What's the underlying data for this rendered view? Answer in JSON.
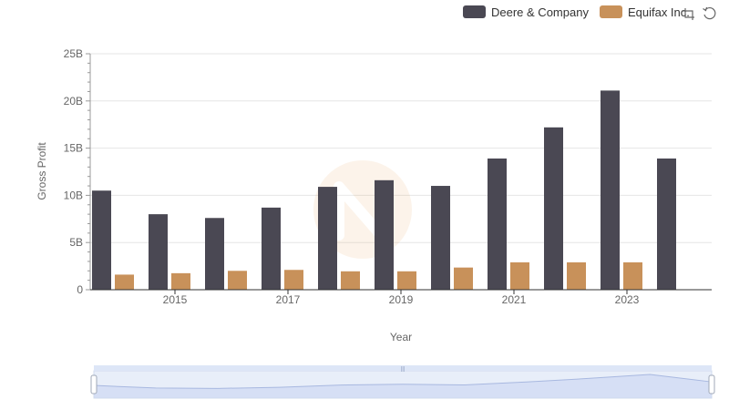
{
  "chart_data": {
    "type": "bar",
    "title": "",
    "xlabel": "Year",
    "ylabel": "Gross Profit",
    "categories": [
      "2014",
      "2015",
      "2016",
      "2017",
      "2018",
      "2019",
      "2020",
      "2021",
      "2022",
      "2023",
      "2024"
    ],
    "x_tick_labels": [
      "2015",
      "2017",
      "2019",
      "2021",
      "2023"
    ],
    "y_tick_labels": [
      "0",
      "5B",
      "10B",
      "15B",
      "20B",
      "25B"
    ],
    "ylim": [
      0,
      25000000000
    ],
    "grid": true,
    "legend_position": "top-right",
    "series": [
      {
        "name": "Deere & Company",
        "color": "#4a4853",
        "values": [
          10500000000,
          8000000000,
          7600000000,
          8700000000,
          10900000000,
          11600000000,
          11000000000,
          13900000000,
          17200000000,
          21100000000,
          13900000000
        ]
      },
      {
        "name": "Equifax Inc.",
        "color": "#c8915a",
        "values": [
          1600000000,
          1750000000,
          2000000000,
          2100000000,
          1950000000,
          1950000000,
          2350000000,
          2900000000,
          2900000000,
          2900000000,
          null
        ]
      }
    ]
  },
  "toolbox": {
    "icons": [
      "zoom-icon",
      "restore-icon"
    ]
  }
}
